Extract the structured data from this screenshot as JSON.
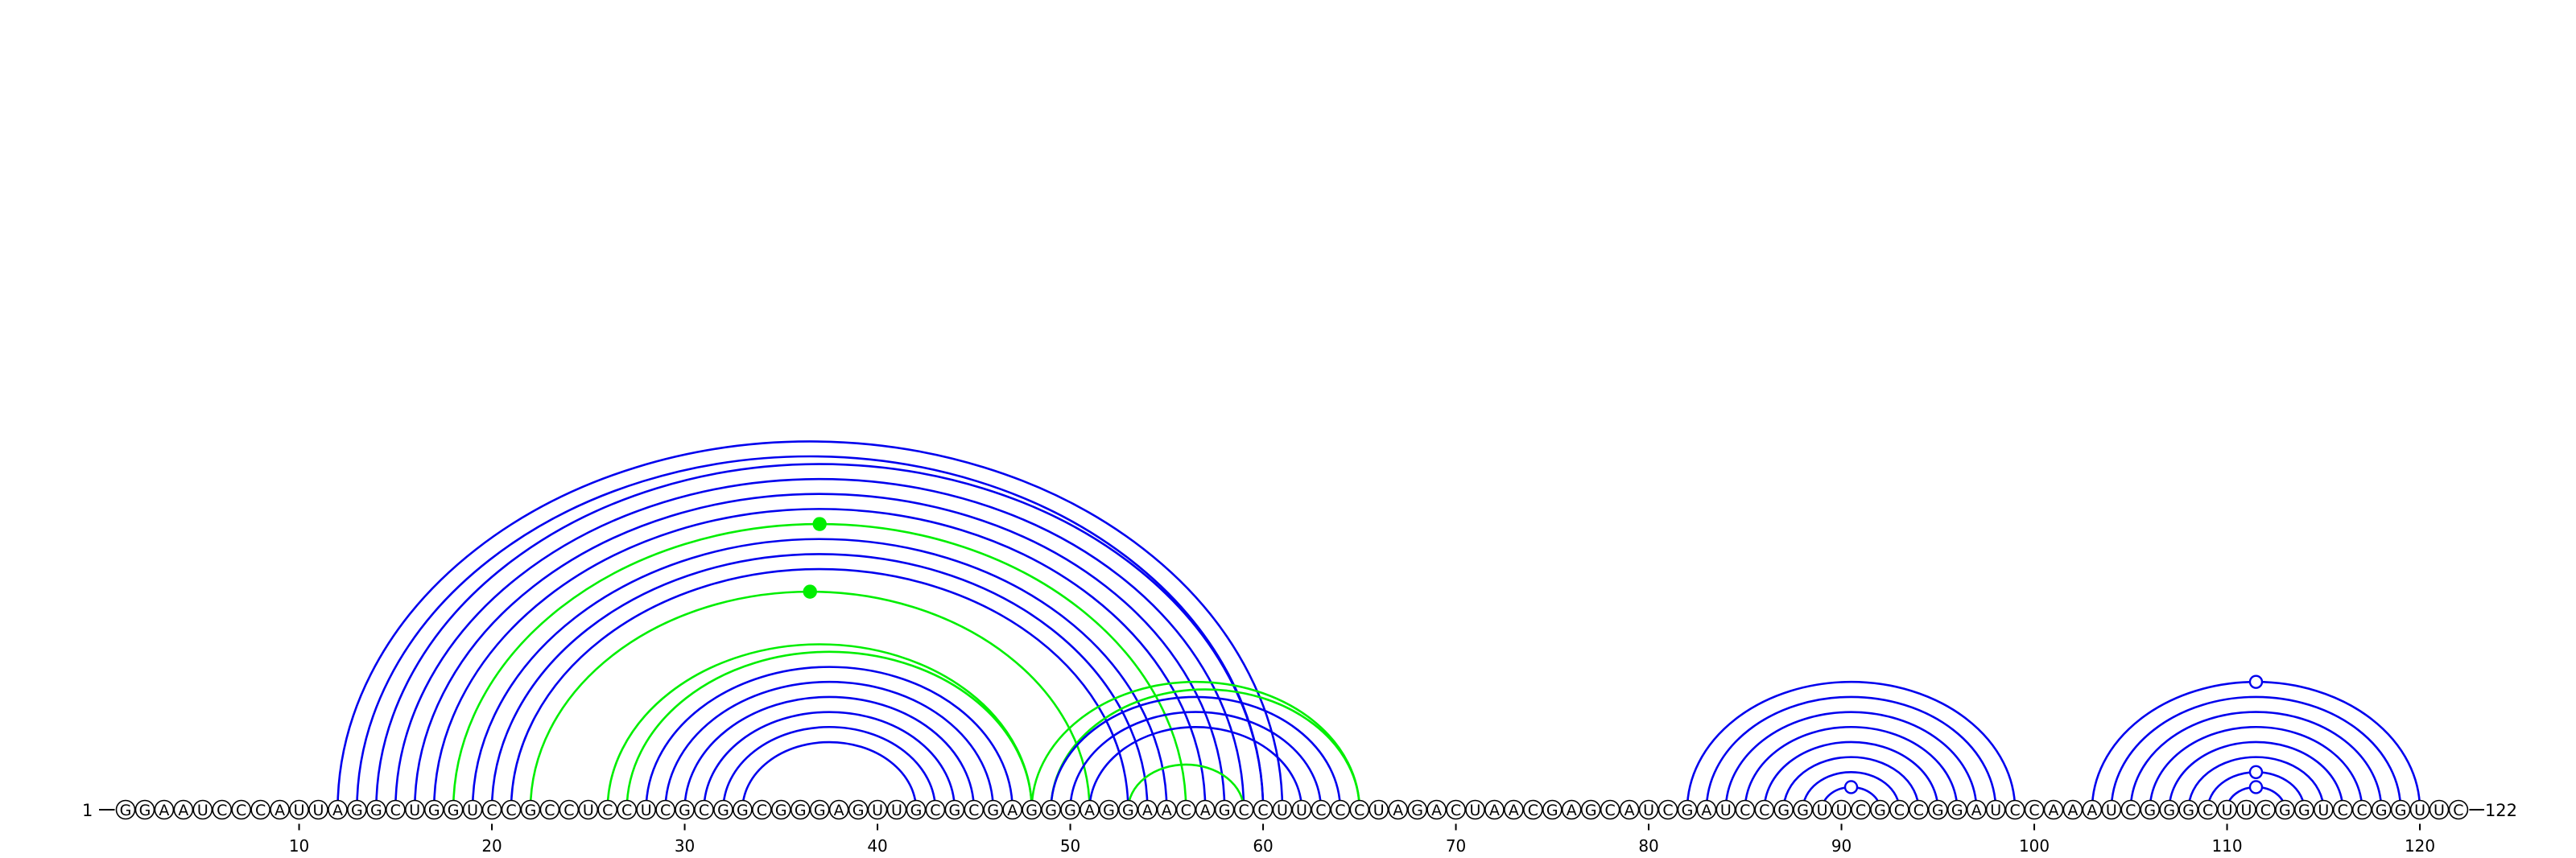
{
  "sequence": "GGAAUCCCAUUAGGCUGGUCCGCCUCCUCGCGGCGGGAGUUGCGCGAGGGAGGAACAGCCUUCCCUAGACUAACGAGCAUCGAUCCGGUUCGCCGGAUCCAAAUCGGGCUUCGGUCCGGUUC",
  "start_label": "1",
  "end_label": "122",
  "ticks": [
    "10",
    "20",
    "30",
    "40",
    "50",
    "60",
    "70",
    "80",
    "90",
    "100",
    "110",
    "120"
  ],
  "colors": {
    "primary_pair": "#0000ee",
    "alternate_pair": "#00ee00",
    "hairpin_marker_fill": "#ffffff"
  },
  "chart_data": {
    "type": "arc",
    "sequence_length": 122,
    "axis_ticks": [
      10,
      20,
      30,
      40,
      50,
      60,
      70,
      80,
      90,
      100,
      110,
      120
    ],
    "base_pairs": [
      {
        "i": 12,
        "j": 61,
        "color": "blue"
      },
      {
        "i": 13,
        "j": 60,
        "color": "blue"
      },
      {
        "i": 14,
        "j": 60,
        "color": "blue"
      },
      {
        "i": 15,
        "j": 59,
        "color": "blue"
      },
      {
        "i": 16,
        "j": 58,
        "color": "blue"
      },
      {
        "i": 17,
        "j": 57,
        "color": "blue"
      },
      {
        "i": 18,
        "j": 56,
        "color": "green"
      },
      {
        "i": 19,
        "j": 55,
        "color": "blue"
      },
      {
        "i": 20,
        "j": 54,
        "color": "blue"
      },
      {
        "i": 21,
        "j": 53,
        "color": "blue"
      },
      {
        "i": 22,
        "j": 51,
        "color": "green"
      },
      {
        "i": 26,
        "j": 48,
        "color": "green"
      },
      {
        "i": 27,
        "j": 48,
        "color": "green"
      },
      {
        "i": 28,
        "j": 47,
        "color": "blue"
      },
      {
        "i": 29,
        "j": 46,
        "color": "blue"
      },
      {
        "i": 30,
        "j": 45,
        "color": "blue"
      },
      {
        "i": 31,
        "j": 44,
        "color": "blue"
      },
      {
        "i": 32,
        "j": 43,
        "color": "blue"
      },
      {
        "i": 33,
        "j": 42,
        "color": "blue"
      },
      {
        "i": 48,
        "j": 65,
        "color": "green"
      },
      {
        "i": 49,
        "j": 65,
        "color": "green"
      },
      {
        "i": 49,
        "j": 64,
        "color": "blue"
      },
      {
        "i": 50,
        "j": 63,
        "color": "blue"
      },
      {
        "i": 51,
        "j": 62,
        "color": "blue"
      },
      {
        "i": 53,
        "j": 59,
        "color": "green"
      },
      {
        "i": 82,
        "j": 99,
        "color": "blue"
      },
      {
        "i": 83,
        "j": 98,
        "color": "blue"
      },
      {
        "i": 84,
        "j": 97,
        "color": "blue"
      },
      {
        "i": 85,
        "j": 96,
        "color": "blue"
      },
      {
        "i": 86,
        "j": 95,
        "color": "blue"
      },
      {
        "i": 87,
        "j": 94,
        "color": "blue"
      },
      {
        "i": 88,
        "j": 93,
        "color": "blue"
      },
      {
        "i": 89,
        "j": 92,
        "color": "blue"
      },
      {
        "i": 103,
        "j": 120,
        "color": "blue"
      },
      {
        "i": 104,
        "j": 119,
        "color": "blue"
      },
      {
        "i": 105,
        "j": 118,
        "color": "blue"
      },
      {
        "i": 106,
        "j": 117,
        "color": "blue"
      },
      {
        "i": 107,
        "j": 116,
        "color": "blue"
      },
      {
        "i": 108,
        "j": 115,
        "color": "blue"
      },
      {
        "i": 109,
        "j": 114,
        "color": "blue"
      },
      {
        "i": 110,
        "j": 113,
        "color": "blue"
      }
    ],
    "markers": [
      {
        "arc_i": 18,
        "arc_j": 56,
        "style": "filled",
        "color": "green"
      },
      {
        "arc_i": 22,
        "arc_j": 51,
        "style": "filled",
        "color": "green"
      },
      {
        "arc_i": 89,
        "arc_j": 92,
        "style": "open",
        "color": "blue"
      },
      {
        "arc_i": 103,
        "arc_j": 120,
        "style": "open",
        "color": "blue"
      },
      {
        "arc_i": 109,
        "arc_j": 114,
        "style": "open",
        "color": "blue"
      },
      {
        "arc_i": 110,
        "arc_j": 113,
        "style": "open",
        "color": "blue"
      }
    ]
  }
}
